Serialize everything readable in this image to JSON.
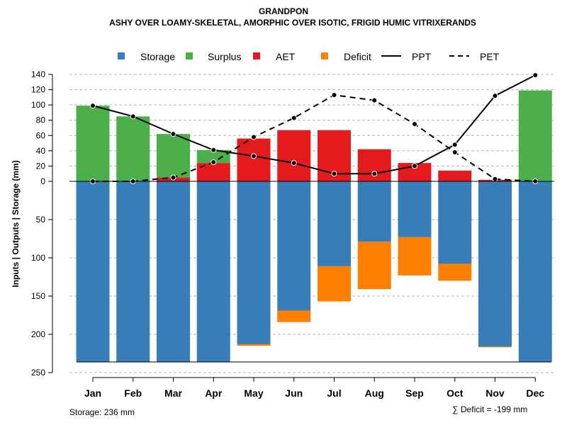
{
  "chart_data": {
    "type": "bar",
    "title": "GRANDPON",
    "subtitle": "ASHY OVER LOAMY-SKELETAL, AMORPHIC OVER ISOTIC, FRIGID HUMIC VITRIXERANDS",
    "ylabel": "Inputs | Outputs | Storage     (mm)",
    "categories": [
      "Jan",
      "Feb",
      "Mar",
      "Apr",
      "May",
      "Jun",
      "Jul",
      "Aug",
      "Sep",
      "Oct",
      "Nov",
      "Dec"
    ],
    "upper_ticks": [
      "140",
      "120",
      "100",
      "80",
      "60",
      "40",
      "20",
      "0"
    ],
    "lower_ticks": [
      "50",
      "100",
      "150",
      "200",
      "250"
    ],
    "ylim_upper": [
      0,
      140
    ],
    "ylim_lower": [
      0,
      250
    ],
    "series": [
      {
        "name": "Storage",
        "color": "#377EB8",
        "values": [
          236,
          236,
          236,
          236,
          213,
          169,
          111,
          79,
          73,
          108,
          216,
          236
        ]
      },
      {
        "name": "Surplus",
        "color": "#4DAF4A",
        "values": [
          99,
          85,
          57,
          17,
          0,
          0,
          0,
          0,
          0,
          0,
          0,
          119
        ]
      },
      {
        "name": "AET",
        "color": "#E41A1C",
        "values": [
          0,
          0,
          5,
          24,
          56,
          67,
          67,
          42,
          24,
          14,
          2,
          0
        ]
      },
      {
        "name": "Deficit",
        "color": "#FF7F00",
        "values": [
          0,
          0,
          0,
          0,
          2,
          15,
          46,
          62,
          50,
          22,
          1,
          0
        ]
      },
      {
        "name": "PPT",
        "style": "solid",
        "values": [
          99,
          85,
          62,
          41,
          33,
          24,
          10,
          10,
          20,
          48,
          112,
          139
        ]
      },
      {
        "name": "PET",
        "style": "dashed",
        "values": [
          0,
          0,
          5,
          25,
          58,
          83,
          113,
          106,
          75,
          38,
          3,
          0
        ]
      }
    ],
    "legend": [
      "Storage",
      "Surplus",
      "AET",
      "Deficit",
      "PPT",
      "PET"
    ],
    "legend_position": "top",
    "footer_left": "Storage: 236 mm",
    "footer_right": "∑ Deficit = -199 mm"
  }
}
